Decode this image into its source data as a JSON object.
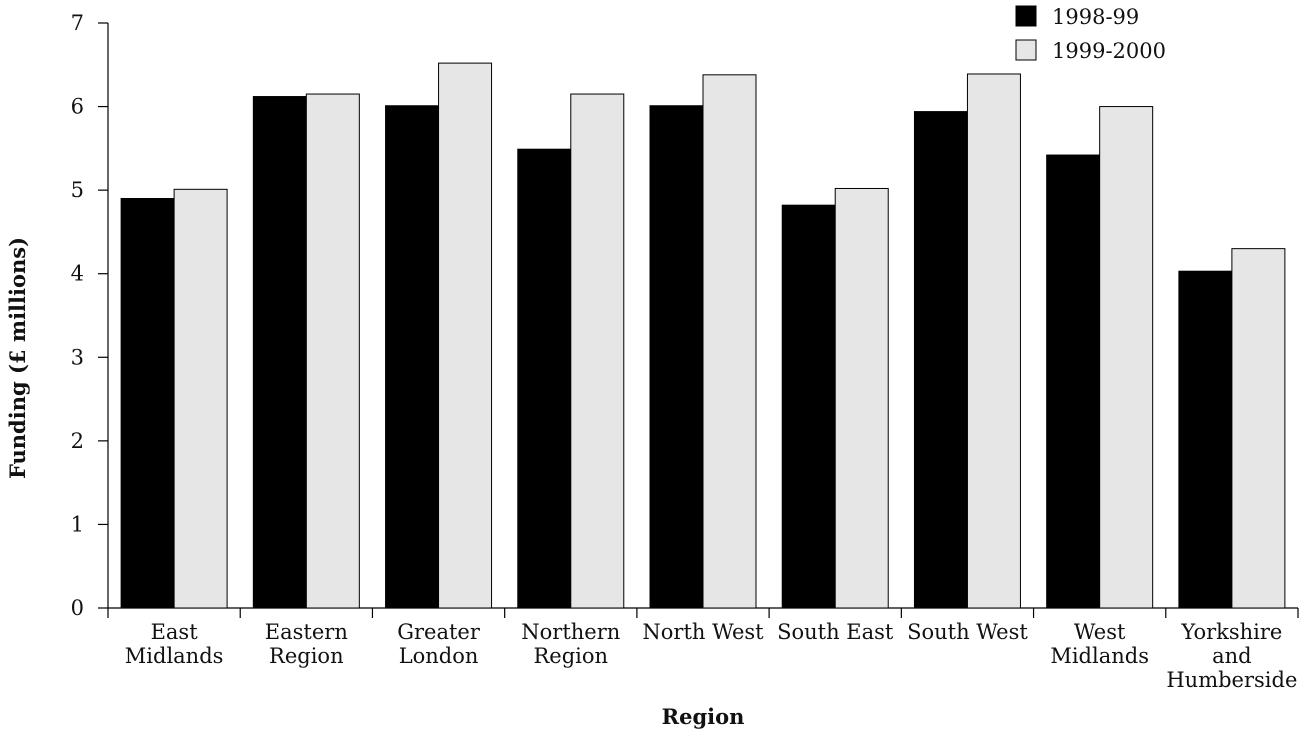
{
  "chart_data": {
    "type": "bar",
    "title": "",
    "xlabel": "Region",
    "ylabel": "Funding (£ millions)",
    "ylim": [
      0,
      7
    ],
    "yticks": [
      "0",
      "1",
      "2",
      "3",
      "4",
      "5",
      "6",
      "7"
    ],
    "grid": false,
    "legend_position": "top-right",
    "categories": [
      [
        "East",
        "Midlands"
      ],
      [
        "Eastern",
        "Region"
      ],
      [
        "Greater",
        "London"
      ],
      [
        "Northern",
        "Region"
      ],
      [
        "North West"
      ],
      [
        "South East"
      ],
      [
        "South West"
      ],
      [
        "West",
        "Midlands"
      ],
      [
        "Yorkshire",
        "and",
        "Humberside"
      ]
    ],
    "series": [
      {
        "name": "1998-99",
        "color": "#000000",
        "values": [
          4.9,
          6.12,
          6.01,
          5.49,
          6.01,
          4.82,
          5.94,
          5.42,
          4.03
        ]
      },
      {
        "name": "1999-2000",
        "color": "#e6e6e6",
        "values": [
          5.01,
          6.15,
          6.52,
          6.15,
          6.38,
          5.02,
          6.39,
          6.0,
          4.3
        ]
      }
    ]
  }
}
